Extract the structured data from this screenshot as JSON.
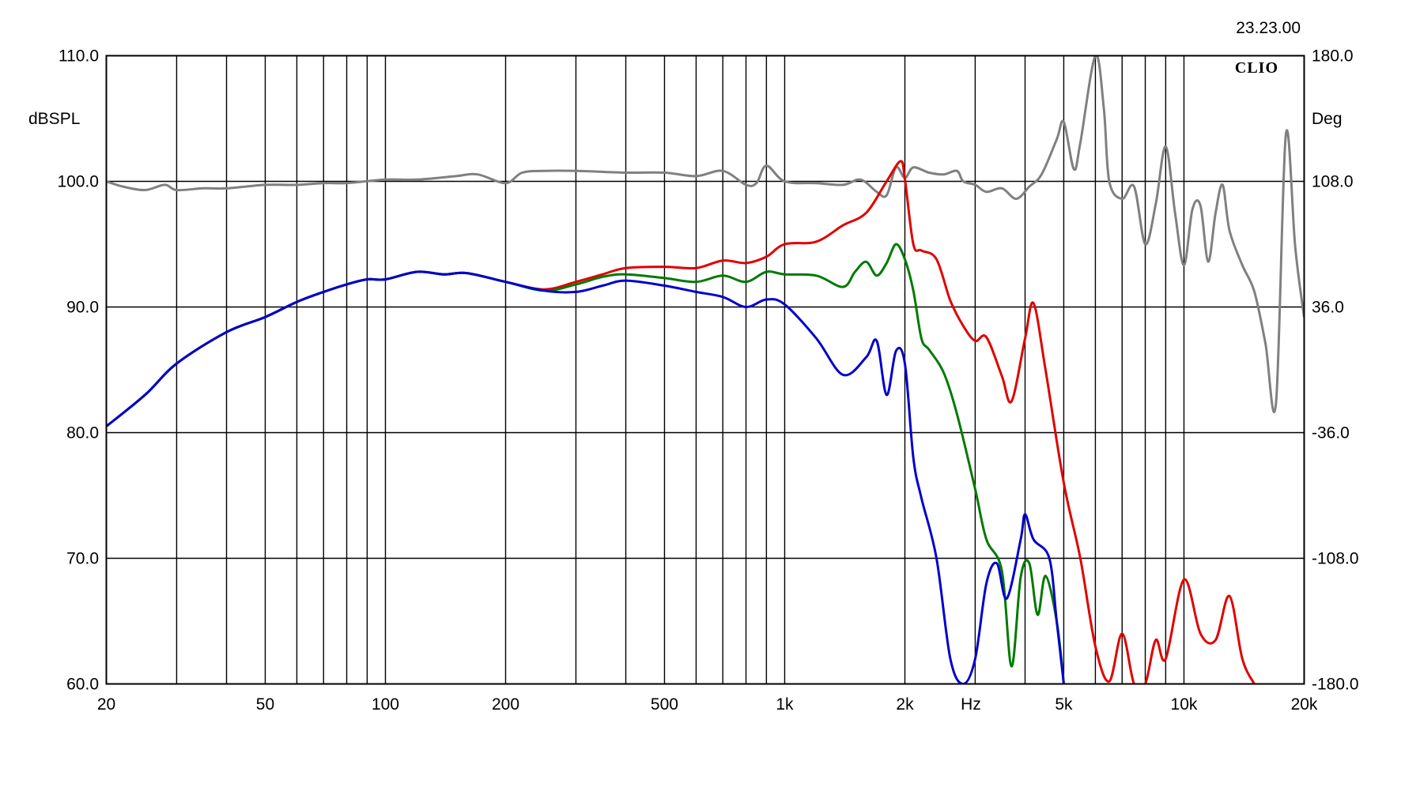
{
  "timestamp": "23.23.00",
  "brand": "CLIO",
  "chart_data": {
    "type": "line",
    "xscale": "log",
    "xlim": [
      20,
      20000
    ],
    "ylim": [
      60,
      110
    ],
    "y2lim": [
      -180,
      180
    ],
    "grid": true,
    "ylabel": "dBSPL",
    "y2label": "Deg",
    "xlabel": "Hz",
    "x_gridlines": [
      20,
      30,
      40,
      50,
      60,
      70,
      80,
      90,
      100,
      200,
      300,
      400,
      500,
      600,
      700,
      800,
      900,
      1000,
      2000,
      3000,
      4000,
      5000,
      6000,
      7000,
      8000,
      9000,
      10000,
      20000
    ],
    "x_tick_labels": [
      {
        "value": 20,
        "label": "20"
      },
      {
        "value": 50,
        "label": "50"
      },
      {
        "value": 100,
        "label": "100"
      },
      {
        "value": 200,
        "label": "200"
      },
      {
        "value": 500,
        "label": "500"
      },
      {
        "value": 1000,
        "label": "1k"
      },
      {
        "value": 2000,
        "label": "2k"
      },
      {
        "value": 5000,
        "label": "5k"
      },
      {
        "value": 10000,
        "label": "10k"
      },
      {
        "value": 20000,
        "label": "20k"
      }
    ],
    "y_ticks": [
      {
        "value": 60,
        "label": "60.0"
      },
      {
        "value": 70,
        "label": "70.0"
      },
      {
        "value": 80,
        "label": "80.0"
      },
      {
        "value": 90,
        "label": "90.0"
      },
      {
        "value": 100,
        "label": "100.0"
      },
      {
        "value": 110,
        "label": "110.0"
      }
    ],
    "y2_ticks": [
      {
        "value": -180,
        "label": "-180.0"
      },
      {
        "value": -108,
        "label": "-108.0"
      },
      {
        "value": -36,
        "label": "-36.0"
      },
      {
        "value": 36,
        "label": "36.0"
      },
      {
        "value": 108,
        "label": "108.0"
      },
      {
        "value": 180,
        "label": "180.0"
      }
    ],
    "series": [
      {
        "color": "#808080",
        "axis": "y2",
        "points": [
          [
            20,
            108
          ],
          [
            22,
            105
          ],
          [
            25,
            103
          ],
          [
            28,
            106
          ],
          [
            30,
            103
          ],
          [
            35,
            104
          ],
          [
            40,
            104
          ],
          [
            50,
            106
          ],
          [
            60,
            106
          ],
          [
            70,
            107
          ],
          [
            80,
            107
          ],
          [
            100,
            109
          ],
          [
            120,
            109
          ],
          [
            150,
            111
          ],
          [
            170,
            112
          ],
          [
            200,
            107
          ],
          [
            220,
            113
          ],
          [
            250,
            114
          ],
          [
            300,
            114
          ],
          [
            400,
            113
          ],
          [
            500,
            113
          ],
          [
            600,
            111
          ],
          [
            700,
            114
          ],
          [
            800,
            106
          ],
          [
            850,
            107
          ],
          [
            900,
            117
          ],
          [
            1000,
            108
          ],
          [
            1200,
            107
          ],
          [
            1400,
            106
          ],
          [
            1550,
            109
          ],
          [
            1700,
            102
          ],
          [
            1800,
            100
          ],
          [
            1900,
            116
          ],
          [
            2000,
            110
          ],
          [
            2100,
            116
          ],
          [
            2300,
            113
          ],
          [
            2500,
            112
          ],
          [
            2700,
            114
          ],
          [
            2800,
            108
          ],
          [
            3000,
            106
          ],
          [
            3200,
            102
          ],
          [
            3500,
            104
          ],
          [
            3800,
            98
          ],
          [
            4100,
            105
          ],
          [
            4400,
            112
          ],
          [
            4800,
            132
          ],
          [
            5000,
            142
          ],
          [
            5300,
            115
          ],
          [
            5500,
            130
          ],
          [
            6000,
            180
          ],
          [
            6300,
            150
          ],
          [
            6500,
            108
          ],
          [
            7000,
            98
          ],
          [
            7500,
            105
          ],
          [
            8000,
            72
          ],
          [
            8500,
            95
          ],
          [
            9000,
            128
          ],
          [
            9500,
            90
          ],
          [
            10000,
            60
          ],
          [
            10500,
            92
          ],
          [
            11000,
            94
          ],
          [
            11500,
            62
          ],
          [
            12000,
            90
          ],
          [
            12500,
            106
          ],
          [
            13000,
            80
          ],
          [
            14000,
            60
          ],
          [
            15000,
            45
          ],
          [
            16000,
            15
          ],
          [
            17000,
            -19
          ],
          [
            18000,
            135
          ],
          [
            19000,
            70
          ],
          [
            20000,
            30
          ]
        ]
      },
      {
        "color": "#e00000",
        "axis": "y",
        "points": [
          [
            20,
            80.5
          ],
          [
            25,
            83
          ],
          [
            30,
            85.5
          ],
          [
            40,
            88
          ],
          [
            50,
            89.2
          ],
          [
            60,
            90.4
          ],
          [
            70,
            91.2
          ],
          [
            80,
            91.8
          ],
          [
            90,
            92.2
          ],
          [
            100,
            92.2
          ],
          [
            120,
            92.8
          ],
          [
            140,
            92.6
          ],
          [
            160,
            92.7
          ],
          [
            200,
            92.0
          ],
          [
            250,
            91.4
          ],
          [
            300,
            92.0
          ],
          [
            350,
            92.6
          ],
          [
            400,
            93.1
          ],
          [
            500,
            93.2
          ],
          [
            600,
            93.1
          ],
          [
            700,
            93.7
          ],
          [
            800,
            93.5
          ],
          [
            900,
            94.0
          ],
          [
            1000,
            95.0
          ],
          [
            1200,
            95.2
          ],
          [
            1400,
            96.5
          ],
          [
            1600,
            97.5
          ],
          [
            1800,
            100.0
          ],
          [
            1950,
            101.6
          ],
          [
            2000,
            100.2
          ],
          [
            2100,
            95.0
          ],
          [
            2200,
            94.5
          ],
          [
            2400,
            93.8
          ],
          [
            2600,
            90.5
          ],
          [
            2800,
            88.5
          ],
          [
            3000,
            87.3
          ],
          [
            3200,
            87.6
          ],
          [
            3500,
            84.5
          ],
          [
            3700,
            82.5
          ],
          [
            4000,
            87.5
          ],
          [
            4200,
            90.3
          ],
          [
            4500,
            85.0
          ],
          [
            5000,
            76.0
          ],
          [
            5500,
            70.0
          ],
          [
            6000,
            63.0
          ],
          [
            6500,
            60.2
          ],
          [
            7000,
            64.0
          ],
          [
            7500,
            60.0
          ],
          [
            8000,
            60.0
          ],
          [
            8500,
            63.5
          ],
          [
            9000,
            62.0
          ],
          [
            10000,
            68.3
          ],
          [
            11000,
            64.0
          ],
          [
            12000,
            63.5
          ],
          [
            13000,
            67.0
          ],
          [
            14000,
            62.0
          ],
          [
            15000,
            60.0
          ]
        ]
      },
      {
        "color": "#007a00",
        "axis": "y",
        "points": [
          [
            20,
            80.5
          ],
          [
            25,
            83
          ],
          [
            30,
            85.5
          ],
          [
            40,
            88
          ],
          [
            50,
            89.2
          ],
          [
            60,
            90.4
          ],
          [
            70,
            91.2
          ],
          [
            80,
            91.8
          ],
          [
            90,
            92.2
          ],
          [
            100,
            92.2
          ],
          [
            120,
            92.8
          ],
          [
            140,
            92.6
          ],
          [
            160,
            92.7
          ],
          [
            200,
            92.0
          ],
          [
            250,
            91.3
          ],
          [
            300,
            91.8
          ],
          [
            350,
            92.4
          ],
          [
            400,
            92.6
          ],
          [
            500,
            92.3
          ],
          [
            600,
            92.0
          ],
          [
            700,
            92.5
          ],
          [
            800,
            92.0
          ],
          [
            900,
            92.8
          ],
          [
            1000,
            92.6
          ],
          [
            1200,
            92.5
          ],
          [
            1400,
            91.6
          ],
          [
            1500,
            92.8
          ],
          [
            1600,
            93.6
          ],
          [
            1700,
            92.5
          ],
          [
            1800,
            93.5
          ],
          [
            1900,
            95.0
          ],
          [
            2000,
            93.8
          ],
          [
            2100,
            91.3
          ],
          [
            2200,
            87.5
          ],
          [
            2300,
            86.6
          ],
          [
            2500,
            84.8
          ],
          [
            2700,
            81.5
          ],
          [
            3000,
            75.5
          ],
          [
            3200,
            71.5
          ],
          [
            3500,
            69.0
          ],
          [
            3700,
            61.4
          ],
          [
            3900,
            68.5
          ],
          [
            4100,
            69.6
          ],
          [
            4300,
            65.5
          ],
          [
            4500,
            68.6
          ],
          [
            4800,
            65.0
          ],
          [
            5000,
            60.0
          ]
        ]
      },
      {
        "color": "#0000cc",
        "axis": "y",
        "points": [
          [
            20,
            80.5
          ],
          [
            25,
            83
          ],
          [
            30,
            85.5
          ],
          [
            40,
            88
          ],
          [
            50,
            89.2
          ],
          [
            60,
            90.4
          ],
          [
            70,
            91.2
          ],
          [
            80,
            91.8
          ],
          [
            90,
            92.2
          ],
          [
            100,
            92.2
          ],
          [
            120,
            92.8
          ],
          [
            140,
            92.6
          ],
          [
            160,
            92.7
          ],
          [
            200,
            92.0
          ],
          [
            250,
            91.3
          ],
          [
            300,
            91.2
          ],
          [
            350,
            91.7
          ],
          [
            400,
            92.1
          ],
          [
            500,
            91.7
          ],
          [
            600,
            91.2
          ],
          [
            700,
            90.8
          ],
          [
            800,
            90.0
          ],
          [
            900,
            90.6
          ],
          [
            1000,
            90.2
          ],
          [
            1200,
            87.5
          ],
          [
            1400,
            84.6
          ],
          [
            1600,
            86.0
          ],
          [
            1700,
            87.3
          ],
          [
            1800,
            83.0
          ],
          [
            1900,
            86.5
          ],
          [
            2000,
            85.5
          ],
          [
            2100,
            78.0
          ],
          [
            2200,
            74.8
          ],
          [
            2400,
            70.0
          ],
          [
            2600,
            62.0
          ],
          [
            2800,
            60.0
          ],
          [
            3000,
            62.0
          ],
          [
            3200,
            68.0
          ],
          [
            3400,
            69.6
          ],
          [
            3600,
            66.8
          ],
          [
            3900,
            71.5
          ],
          [
            4000,
            73.5
          ],
          [
            4200,
            71.5
          ],
          [
            4600,
            70.0
          ],
          [
            4800,
            65.0
          ],
          [
            5000,
            60.0
          ]
        ]
      }
    ]
  }
}
